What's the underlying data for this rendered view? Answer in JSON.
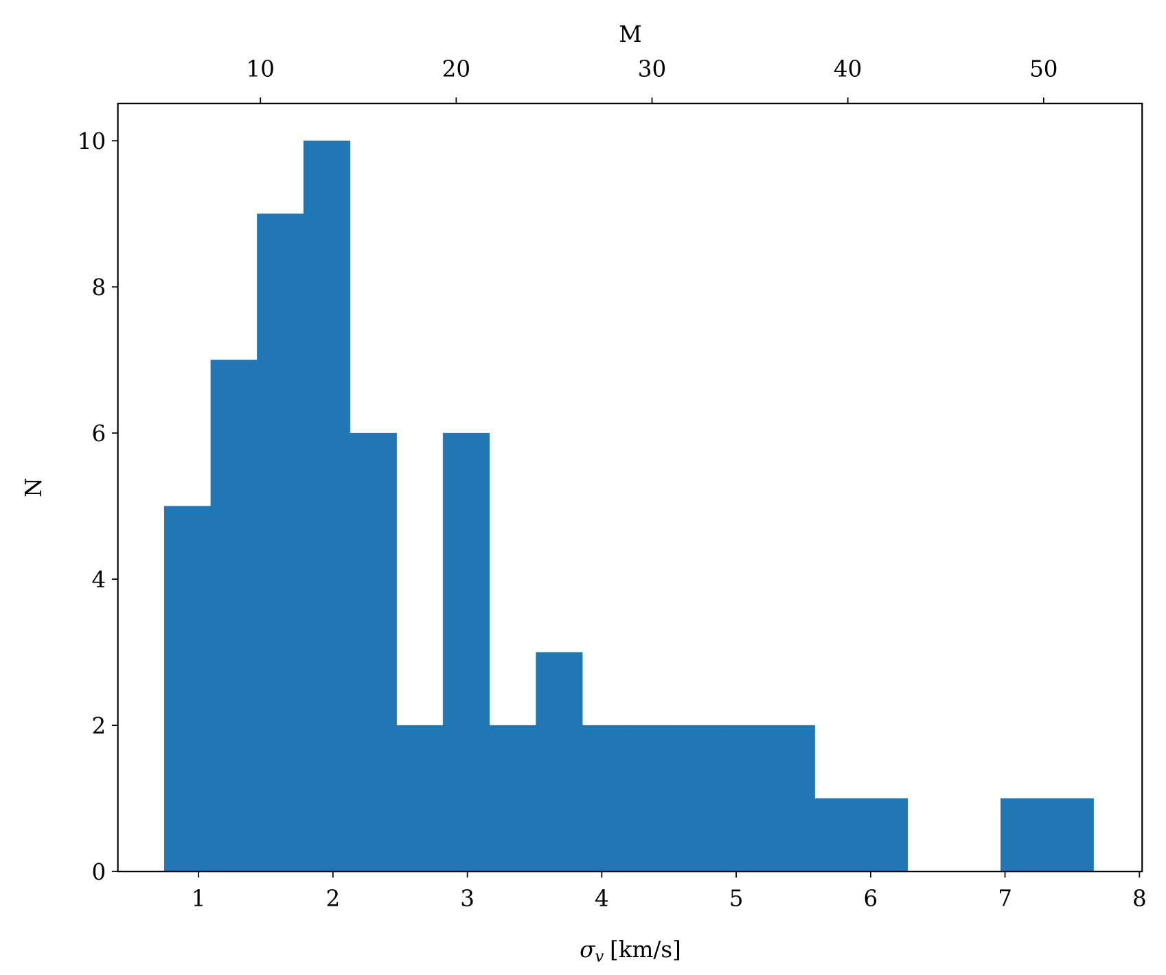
{
  "chart_data": {
    "type": "histogram",
    "xlabel": [
      "σ",
      "v",
      "[km/s]"
    ],
    "ylabel": "N",
    "x2label": "M",
    "bins": [
      0.745,
      1.091,
      1.436,
      1.782,
      2.128,
      2.474,
      2.819,
      3.165,
      3.511,
      3.856,
      4.202,
      4.548,
      4.893,
      5.239,
      5.585,
      5.931,
      6.276,
      6.622,
      6.968,
      7.313,
      7.659
    ],
    "values": [
      5,
      7,
      9,
      10,
      6,
      2,
      6,
      2,
      3,
      2,
      2,
      2,
      2,
      2,
      1,
      1,
      0,
      0,
      1,
      1
    ],
    "color": "#2077b4",
    "xlim": [
      0.4,
      8.02
    ],
    "xticks": [
      1,
      2,
      3,
      4,
      5,
      6,
      7,
      8
    ],
    "x2lim": [
      2.72,
      55.03
    ],
    "x2ticks": [
      10,
      20,
      30,
      40,
      50
    ],
    "ylim": [
      0,
      10.51
    ],
    "yticks": [
      0,
      2,
      4,
      6,
      8,
      10
    ],
    "grid": false
  }
}
